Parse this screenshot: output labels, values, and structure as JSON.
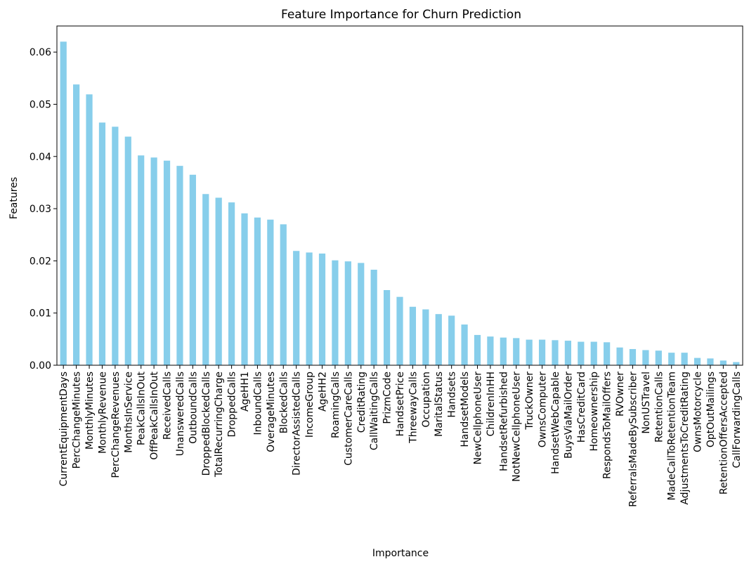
{
  "chart_data": {
    "type": "bar",
    "title": "Feature Importance for Churn Prediction",
    "xlabel": "Importance",
    "ylabel": "Features",
    "ylim": [
      0,
      0.065
    ],
    "yticks": [
      0.0,
      0.01,
      0.02,
      0.03,
      0.04,
      0.05,
      0.06
    ],
    "bar_color": "#87ceeb",
    "grid": false,
    "categories": [
      "CurrentEquipmentDays",
      "PercChangeMinutes",
      "MonthlyMinutes",
      "MonthlyRevenue",
      "PercChangeRevenues",
      "MonthsInService",
      "PeakCallsInOut",
      "OffPeakCallsInOut",
      "ReceivedCalls",
      "UnansweredCalls",
      "OutboundCalls",
      "DroppedBlockedCalls",
      "TotalRecurringCharge",
      "DroppedCalls",
      "AgeHH1",
      "InboundCalls",
      "OverageMinutes",
      "BlockedCalls",
      "DirectorAssistedCalls",
      "IncomeGroup",
      "AgeHH2",
      "RoamingCalls",
      "CustomerCareCalls",
      "CreditRating",
      "CallWaitingCalls",
      "PrizmCode",
      "HandsetPrice",
      "ThreewayCalls",
      "Occupation",
      "MaritalStatus",
      "Handsets",
      "HandsetModels",
      "NewCellphoneUser",
      "ChildrenInHH",
      "HandsetRefurbished",
      "NotNewCellphoneUser",
      "TruckOwner",
      "OwnsComputer",
      "HandsetWebCapable",
      "BuysViaMailOrder",
      "HasCreditCard",
      "Homeownership",
      "RespondsToMailOffers",
      "RVOwner",
      "ReferralsMadeBySubscriber",
      "NonUSTravel",
      "RetentionCalls",
      "MadeCallToRetentionTeam",
      "AdjustmentsToCreditRating",
      "OwnsMotorcycle",
      "OptOutMailings",
      "RetentionOffersAccepted",
      "CallForwardingCalls"
    ],
    "values": [
      0.062,
      0.0538,
      0.0519,
      0.0465,
      0.0457,
      0.0438,
      0.0402,
      0.0398,
      0.0392,
      0.0382,
      0.0365,
      0.0328,
      0.0321,
      0.0312,
      0.0291,
      0.0283,
      0.0279,
      0.027,
      0.0219,
      0.0216,
      0.0214,
      0.0201,
      0.0199,
      0.0196,
      0.0183,
      0.0144,
      0.0131,
      0.0112,
      0.0107,
      0.0098,
      0.0095,
      0.0078,
      0.0058,
      0.0055,
      0.0053,
      0.0052,
      0.0049,
      0.0049,
      0.0048,
      0.0047,
      0.0045,
      0.0045,
      0.0044,
      0.0034,
      0.0031,
      0.0029,
      0.0028,
      0.0024,
      0.0024,
      0.0014,
      0.0013,
      0.0009,
      0.0006
    ]
  }
}
